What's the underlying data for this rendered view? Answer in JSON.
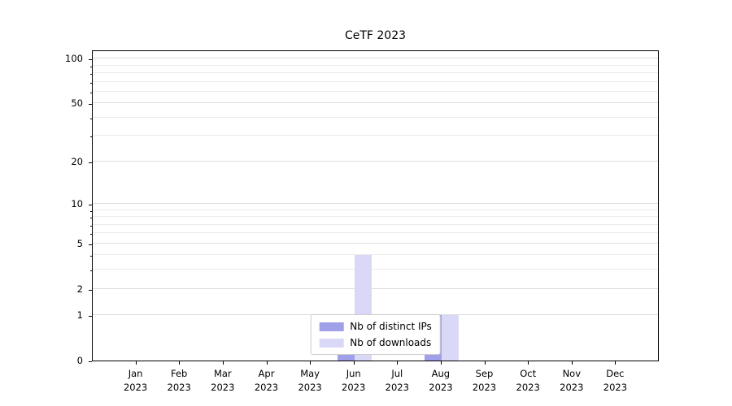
{
  "chart_data": {
    "type": "bar",
    "title": "CeTF 2023",
    "categories": [
      "Jan 2023",
      "Feb 2023",
      "Mar 2023",
      "Apr 2023",
      "May 2023",
      "Jun 2023",
      "Jul 2023",
      "Aug 2023",
      "Sep 2023",
      "Oct 2023",
      "Nov 2023",
      "Dec 2023"
    ],
    "series": [
      {
        "name": "Nb of distinct IPs",
        "color": "#a0a0e8",
        "values": [
          0,
          0,
          0,
          0,
          0,
          1,
          0,
          1,
          0,
          0,
          0,
          0
        ]
      },
      {
        "name": "Nb of downloads",
        "color": "#d9d9f7",
        "values": [
          0,
          0,
          0,
          0,
          0,
          4,
          0,
          1,
          0,
          0,
          0,
          0
        ]
      }
    ],
    "yticks": [
      0,
      1,
      2,
      5,
      10,
      20,
      50,
      100
    ],
    "minor_gridlines": [
      1,
      2,
      3,
      4,
      5,
      6,
      7,
      8,
      9,
      10,
      20,
      30,
      40,
      50,
      60,
      70,
      80,
      90,
      100
    ],
    "ylim": [
      0,
      115
    ],
    "scale": "log1p",
    "grid": true,
    "legend_position": "lower center",
    "colors": {
      "axis": "#000000",
      "major_grid": "#dddddd",
      "minor_grid": "#ebebeb",
      "legend_border": "#cccccc",
      "background": "#ffffff"
    }
  }
}
